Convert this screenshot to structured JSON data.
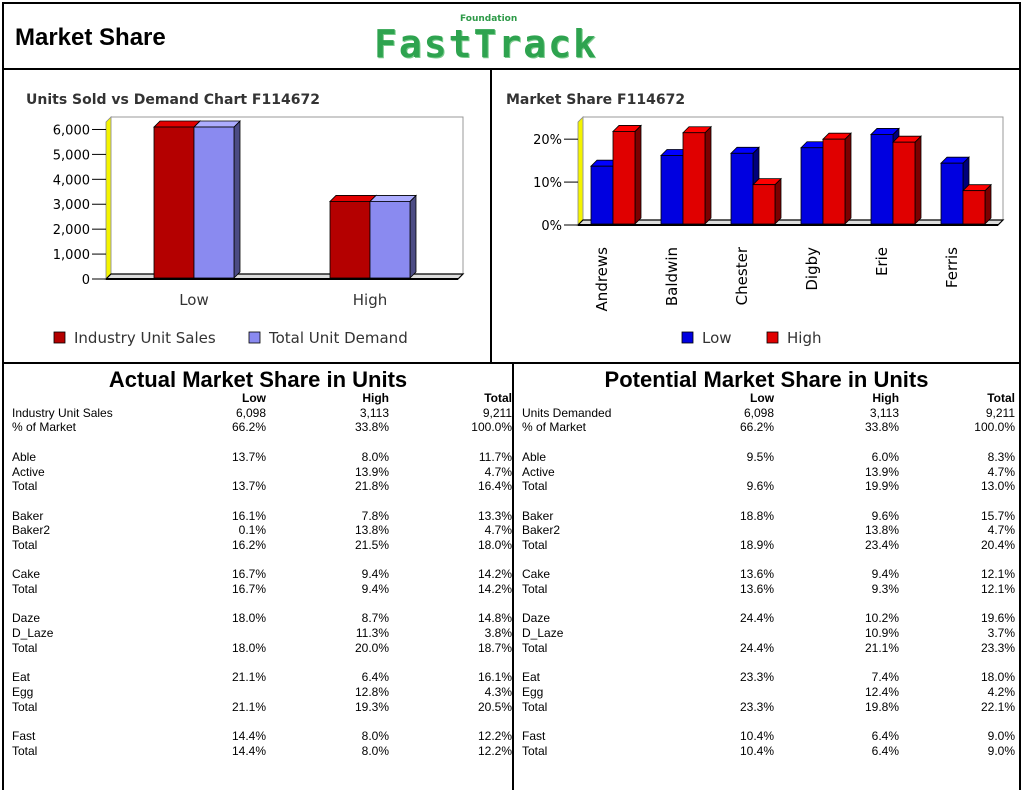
{
  "header": {
    "title": "Market Share",
    "logo_small": "Foundation",
    "logo_main": "FastTrack"
  },
  "chart_data": [
    {
      "type": "bar",
      "title": "Units Sold vs Demand Chart  F114672",
      "categories": [
        "Low",
        "High"
      ],
      "series": [
        {
          "name": "Industry Unit Sales",
          "values": [
            6098,
            3113
          ],
          "color": "#b40000"
        },
        {
          "name": "Total Unit Demand",
          "values": [
            6098,
            3113
          ],
          "color": "#8a8af0"
        }
      ],
      "yticks": [
        "0",
        "1,000",
        "2,000",
        "3,000",
        "4,000",
        "5,000",
        "6,000"
      ],
      "ylim": [
        0,
        6300
      ],
      "legend": "bottom"
    },
    {
      "type": "bar",
      "title": "Market Share  F114672",
      "categories": [
        "Andrews",
        "Baldwin",
        "Chester",
        "Digby",
        "Erie",
        "Ferris"
      ],
      "series": [
        {
          "name": "Low",
          "values": [
            13.7,
            16.2,
            16.7,
            18.0,
            21.1,
            14.4
          ],
          "color": "#0000e0"
        },
        {
          "name": "High",
          "values": [
            21.8,
            21.5,
            9.4,
            20.0,
            19.3,
            8.0
          ],
          "color": "#e00000"
        }
      ],
      "yticks": [
        "0%",
        "10%",
        "20%"
      ],
      "ylim": [
        0,
        24
      ],
      "legend": "bottom"
    }
  ],
  "actual": {
    "title": "Actual Market Share in Units",
    "headers": [
      "",
      "Low",
      "High",
      "Total"
    ],
    "rows": [
      [
        "Industry Unit Sales",
        "6,098",
        "3,113",
        "9,211"
      ],
      [
        "% of Market",
        "66.2%",
        "33.8%",
        "100.0%"
      ],
      [
        "",
        "",
        "",
        ""
      ],
      [
        "Able",
        "13.7%",
        "8.0%",
        "11.7%"
      ],
      [
        "Active",
        "",
        "13.9%",
        "4.7%"
      ],
      [
        "Total",
        "13.7%",
        "21.8%",
        "16.4%"
      ],
      [
        "",
        "",
        "",
        ""
      ],
      [
        "Baker",
        "16.1%",
        "7.8%",
        "13.3%"
      ],
      [
        "Baker2",
        "0.1%",
        "13.8%",
        "4.7%"
      ],
      [
        "Total",
        "16.2%",
        "21.5%",
        "18.0%"
      ],
      [
        "",
        "",
        "",
        ""
      ],
      [
        "Cake",
        "16.7%",
        "9.4%",
        "14.2%"
      ],
      [
        "Total",
        "16.7%",
        "9.4%",
        "14.2%"
      ],
      [
        "",
        "",
        "",
        ""
      ],
      [
        "Daze",
        "18.0%",
        "8.7%",
        "14.8%"
      ],
      [
        "D_Laze",
        "",
        "11.3%",
        "3.8%"
      ],
      [
        "Total",
        "18.0%",
        "20.0%",
        "18.7%"
      ],
      [
        "",
        "",
        "",
        ""
      ],
      [
        "Eat",
        "21.1%",
        "6.4%",
        "16.1%"
      ],
      [
        "Egg",
        "",
        "12.8%",
        "4.3%"
      ],
      [
        "Total",
        "21.1%",
        "19.3%",
        "20.5%"
      ],
      [
        "",
        "",
        "",
        ""
      ],
      [
        "Fast",
        "14.4%",
        "8.0%",
        "12.2%"
      ],
      [
        "Total",
        "14.4%",
        "8.0%",
        "12.2%"
      ]
    ]
  },
  "potential": {
    "title": "Potential Market Share in Units",
    "headers": [
      "",
      "Low",
      "High",
      "Total"
    ],
    "rows": [
      [
        "Units Demanded",
        "6,098",
        "3,113",
        "9,211"
      ],
      [
        "% of Market",
        "66.2%",
        "33.8%",
        "100.0%"
      ],
      [
        "",
        "",
        "",
        ""
      ],
      [
        "Able",
        "9.5%",
        "6.0%",
        "8.3%"
      ],
      [
        "Active",
        "",
        "13.9%",
        "4.7%"
      ],
      [
        "Total",
        "9.6%",
        "19.9%",
        "13.0%"
      ],
      [
        "",
        "",
        "",
        ""
      ],
      [
        "Baker",
        "18.8%",
        "9.6%",
        "15.7%"
      ],
      [
        "Baker2",
        "",
        "13.8%",
        "4.7%"
      ],
      [
        "Total",
        "18.9%",
        "23.4%",
        "20.4%"
      ],
      [
        "",
        "",
        "",
        ""
      ],
      [
        "Cake",
        "13.6%",
        "9.4%",
        "12.1%"
      ],
      [
        "Total",
        "13.6%",
        "9.3%",
        "12.1%"
      ],
      [
        "",
        "",
        "",
        ""
      ],
      [
        "Daze",
        "24.4%",
        "10.2%",
        "19.6%"
      ],
      [
        "D_Laze",
        "",
        "10.9%",
        "3.7%"
      ],
      [
        "Total",
        "24.4%",
        "21.1%",
        "23.3%"
      ],
      [
        "",
        "",
        "",
        ""
      ],
      [
        "Eat",
        "23.3%",
        "7.4%",
        "18.0%"
      ],
      [
        "Egg",
        "",
        "12.4%",
        "4.2%"
      ],
      [
        "Total",
        "23.3%",
        "19.8%",
        "22.1%"
      ],
      [
        "",
        "",
        "",
        ""
      ],
      [
        "Fast",
        "10.4%",
        "6.4%",
        "9.0%"
      ],
      [
        "Total",
        "10.4%",
        "6.4%",
        "9.0%"
      ]
    ]
  }
}
